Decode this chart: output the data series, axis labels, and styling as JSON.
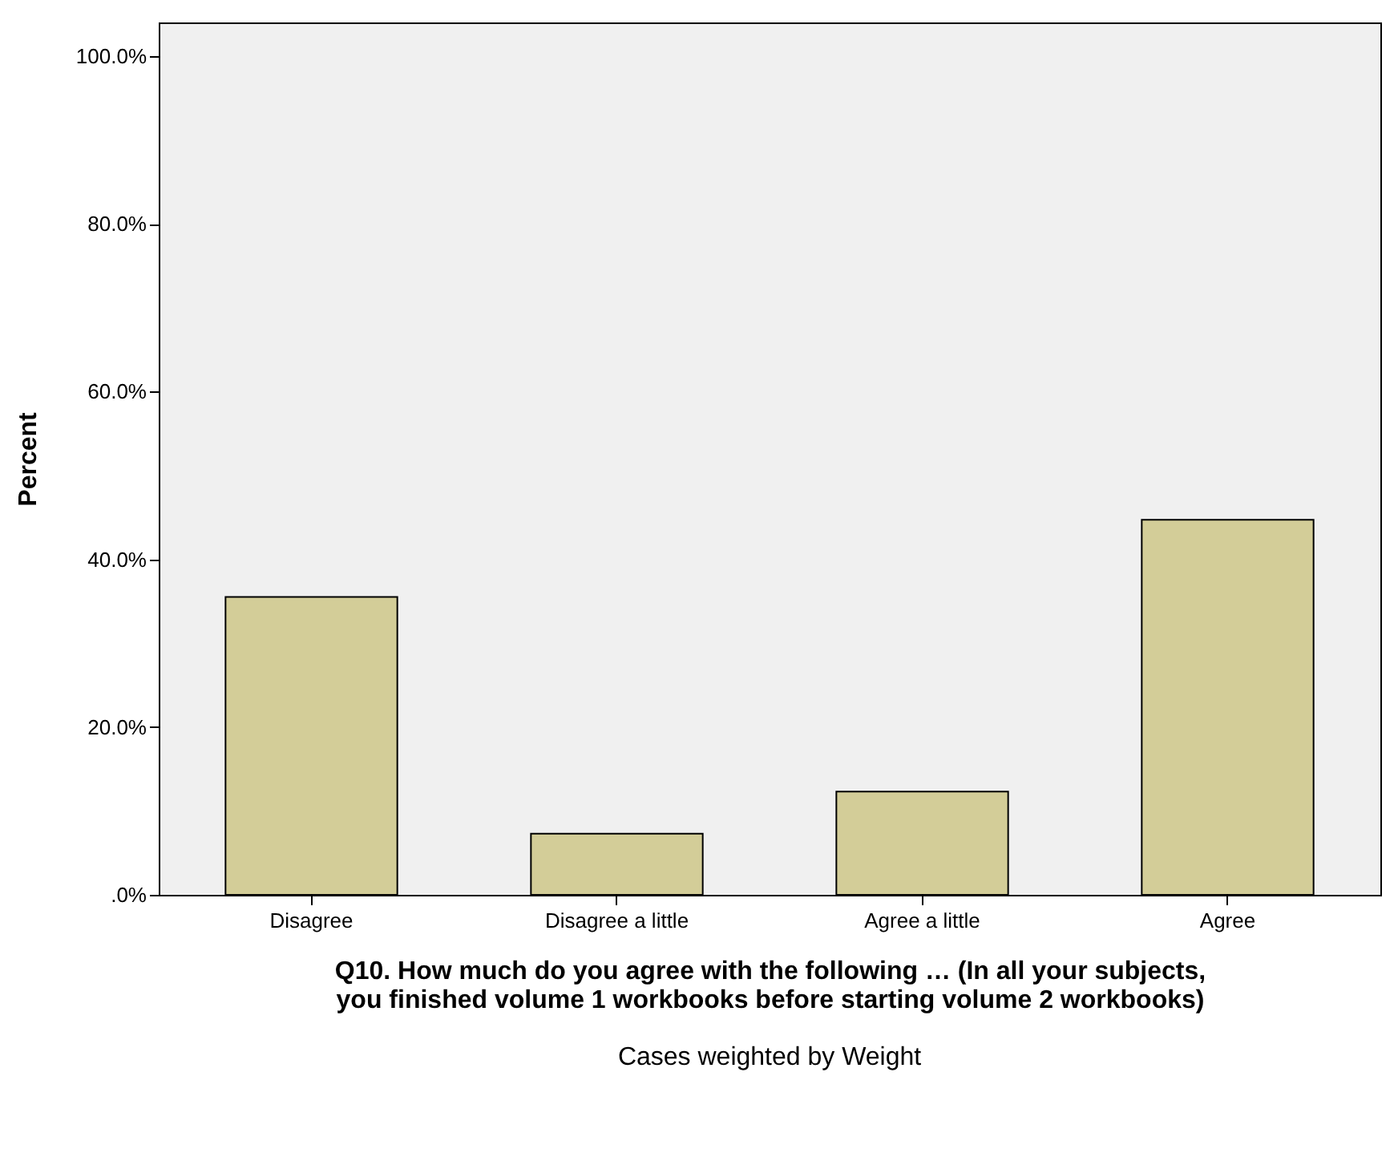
{
  "chart_data": {
    "type": "bar",
    "ylabel": "Percent",
    "xlabel": "Q10. How much do you agree with the following … (In all your subjects,\nyou finished volume 1 workbooks before starting volume 2 workbooks)",
    "categories": [
      "Disagree",
      "Disagree a little",
      "Agree a little",
      "Agree"
    ],
    "values": [
      35.5,
      7.3,
      12.3,
      44.7
    ],
    "color": "#d3cd98",
    "ylim": [
      0,
      104
    ],
    "yticks": [
      {
        "value": 0,
        "label": ".0%"
      },
      {
        "value": 20,
        "label": "20.0%"
      },
      {
        "value": 40,
        "label": "40.0%"
      },
      {
        "value": 60,
        "label": "60.0%"
      },
      {
        "value": 80,
        "label": "80.0%"
      },
      {
        "value": 100,
        "label": "100.0%"
      }
    ],
    "grid": false,
    "annotations": [
      "Cases weighted by Weight"
    ]
  }
}
